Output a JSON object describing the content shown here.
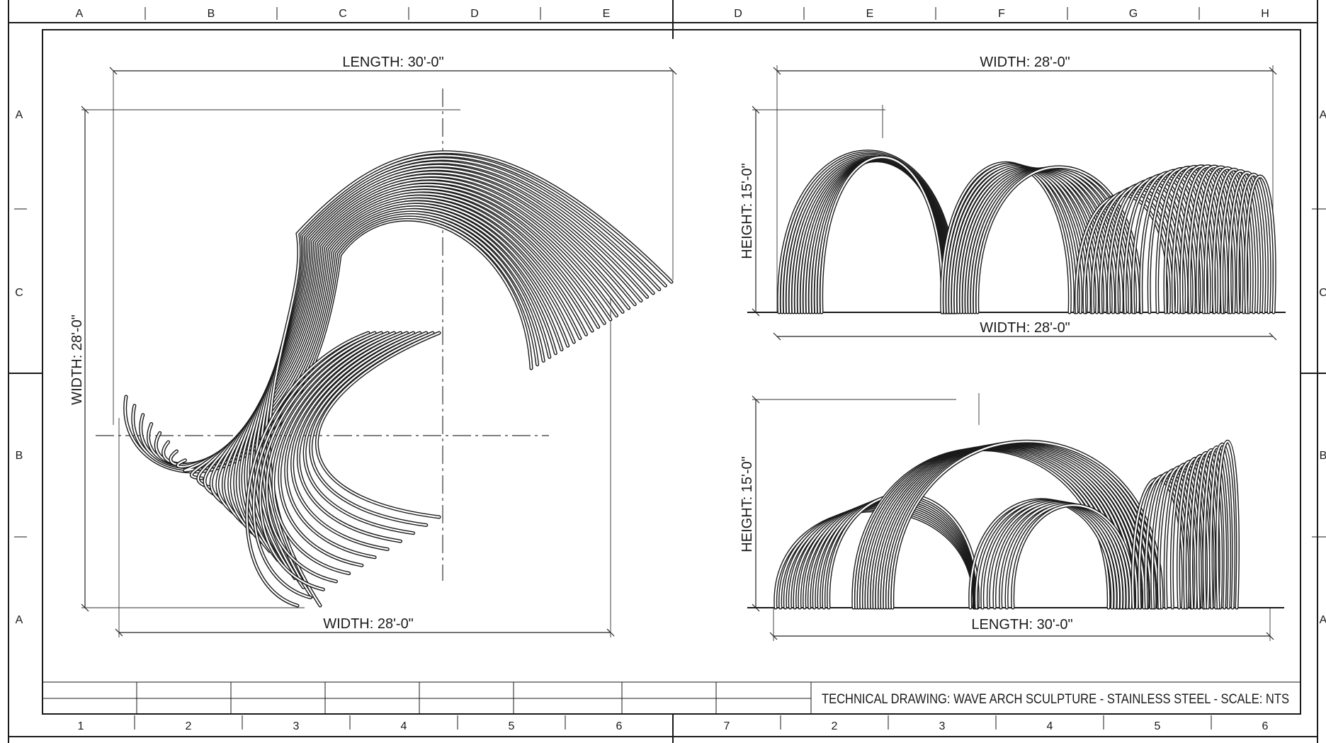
{
  "grid": {
    "top_left": [
      "A",
      "B",
      "C",
      "D",
      "E"
    ],
    "top_right": [
      "D",
      "E",
      "F",
      "G",
      "H"
    ],
    "left": [
      "A",
      "C",
      "B",
      "A"
    ],
    "right": [
      "A",
      "C",
      "B",
      "A"
    ],
    "bottom_left": [
      "1",
      "2",
      "3",
      "4",
      "5",
      "6"
    ],
    "bottom_right": [
      "7",
      "2",
      "3",
      "4",
      "5",
      "6"
    ]
  },
  "plan_view": {
    "length_label": "LENGTH: 30'-0\"",
    "width_label_left": "WIDTH: 28'-0\"",
    "width_label_bottom": "WIDTH: 28'-0\""
  },
  "front_elevation": {
    "width_label_top": "WIDTH: 28'-0\"",
    "width_label_bottom": "WIDTH: 28'-0\"",
    "height_label": "HEIGHT: 15'-0\""
  },
  "side_elevation": {
    "height_label": "HEIGHT: 15'-0\"",
    "length_label": "LENGTH: 30'-0\""
  },
  "title_block": {
    "title": "TECHNICAL DRAWING: WAVE ARCH SCULPTURE - STAINLESS STEEL - SCALE: NTS"
  },
  "colors": {
    "ink": "#1a1a1a",
    "paper": "#ffffff"
  }
}
